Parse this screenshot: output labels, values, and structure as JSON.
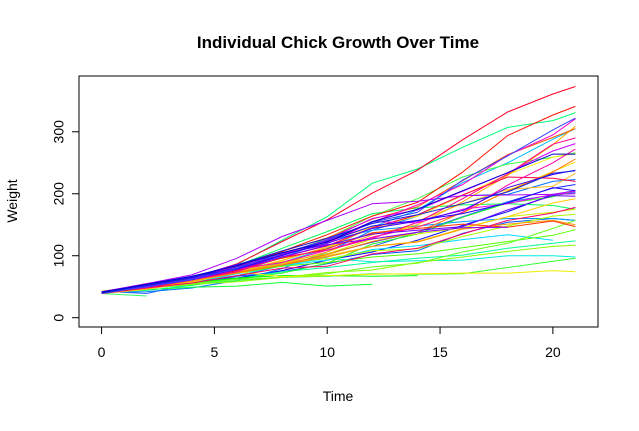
{
  "chart_data": {
    "type": "line",
    "title": "Individual Chick Growth Over Time",
    "xlabel": "Time",
    "ylabel": "Weight",
    "xlim": [
      -1,
      22
    ],
    "ylim": [
      -15,
      390
    ],
    "x_ticks": [
      0,
      5,
      10,
      15,
      20
    ],
    "y_ticks": [
      0,
      100,
      200,
      300
    ],
    "grid": false,
    "legend": "none",
    "x": [
      0,
      2,
      4,
      6,
      8,
      10,
      12,
      14,
      16,
      18,
      20,
      21
    ],
    "series": [
      {
        "color": "#0000FF",
        "values": [
          42,
          51,
          59,
          64,
          76,
          93,
          106,
          125,
          149,
          171,
          199,
          205
        ]
      },
      {
        "color": "#1530FF",
        "values": [
          40,
          49,
          58,
          72,
          84,
          103,
          122,
          138,
          162,
          187,
          209,
          215
        ]
      },
      {
        "color": "#2A60FF",
        "values": [
          43,
          39,
          55,
          67,
          84,
          99,
          115,
          138,
          163,
          187,
          198,
          202
        ]
      },
      {
        "color": "#0055FF",
        "values": [
          42,
          49,
          56,
          67,
          74,
          87,
          102,
          108,
          136,
          154,
          160,
          157
        ]
      },
      {
        "color": "#0077FF",
        "values": [
          41,
          42,
          48,
          60,
          79,
          106,
          141,
          164,
          197,
          199,
          220,
          223
        ]
      },
      {
        "color": "#0099FF",
        "values": [
          41,
          49,
          59,
          74,
          97,
          124,
          141,
          148,
          155,
          160,
          160,
          157
        ]
      },
      {
        "color": "#00BBFF",
        "values": [
          41,
          49,
          57,
          71,
          89,
          112,
          146,
          174,
          218,
          250,
          288,
          305
        ]
      },
      {
        "color": "#00DDFF",
        "values": [
          42,
          50,
          61,
          71,
          84,
          93,
          110,
          116,
          126,
          134,
          125,
          null
        ]
      },
      {
        "color": "#00EEDD",
        "values": [
          42,
          51,
          59,
          68,
          85,
          96,
          90,
          92,
          93,
          100,
          100,
          98
        ]
      },
      {
        "color": "#00FF99",
        "values": [
          41,
          44,
          52,
          63,
          74,
          81,
          89,
          96,
          101,
          112,
          120,
          124
        ]
      },
      {
        "color": "#00FF55",
        "values": [
          43,
          51,
          63,
          84,
          112,
          139,
          168,
          177,
          182,
          184,
          181,
          175
        ]
      },
      {
        "color": "#22FF22",
        "values": [
          41,
          49,
          56,
          62,
          72,
          88,
          119,
          135,
          162,
          185,
          195,
          205
        ]
      },
      {
        "color": "#33FF33",
        "values": [
          41,
          48,
          53,
          60,
          65,
          67,
          71,
          70,
          71,
          81,
          91,
          96
        ]
      },
      {
        "color": "#44FF44",
        "values": [
          41,
          49,
          62,
          79,
          101,
          128,
          164,
          192,
          227,
          248,
          259,
          266
        ]
      },
      {
        "color": "#00FF00",
        "values": [
          41,
          49,
          56,
          64,
          68,
          68,
          67,
          68,
          null,
          null,
          null,
          null
        ]
      },
      {
        "color": "#11FF33",
        "values": [
          41,
          45,
          49,
          51,
          57,
          51,
          54,
          null,
          null,
          null,
          null,
          null
        ]
      },
      {
        "color": "#55FF00",
        "values": [
          42,
          51,
          61,
          72,
          83,
          89,
          98,
          103,
          113,
          123,
          133,
          142
        ]
      },
      {
        "color": "#33FF66",
        "values": [
          39,
          35,
          null,
          null,
          null,
          null,
          null,
          null,
          null,
          null,
          null,
          null
        ]
      },
      {
        "color": "#66FF22",
        "values": [
          43,
          48,
          55,
          62,
          65,
          71,
          82,
          88,
          106,
          120,
          144,
          157
        ]
      },
      {
        "color": "#88FF00",
        "values": [
          41,
          47,
          54,
          58,
          65,
          73,
          77,
          89,
          98,
          107,
          115,
          117
        ]
      },
      {
        "color": "#00FF77",
        "values": [
          40,
          50,
          62,
          86,
          125,
          163,
          217,
          240,
          275,
          307,
          318,
          331
        ]
      },
      {
        "color": "#AAFF00",
        "values": [
          41,
          55,
          64,
          77,
          90,
          95,
          108,
          111,
          131,
          148,
          164,
          167
        ]
      },
      {
        "color": "#CCEE00",
        "values": [
          43,
          52,
          61,
          73,
          90,
          103,
          127,
          135,
          145,
          163,
          170,
          175
        ]
      },
      {
        "color": "#EEEE00",
        "values": [
          42,
          52,
          58,
          74,
          66,
          68,
          70,
          71,
          72,
          72,
          76,
          74
        ]
      },
      {
        "color": "#FFEE11",
        "values": [
          40,
          49,
          62,
          78,
          102,
          124,
          146,
          164,
          197,
          231,
          259,
          265
        ]
      },
      {
        "color": "#FFDD00",
        "values": [
          42,
          48,
          57,
          74,
          93,
          114,
          136,
          147,
          169,
          205,
          236,
          251
        ]
      },
      {
        "color": "#FFCC00",
        "values": [
          39,
          46,
          58,
          73,
          87,
          100,
          115,
          123,
          144,
          163,
          185,
          192
        ]
      },
      {
        "color": "#FFBB22",
        "values": [
          39,
          46,
          58,
          73,
          92,
          114,
          145,
          156,
          184,
          207,
          212,
          233
        ]
      },
      {
        "color": "#FFAA00",
        "values": [
          39,
          48,
          59,
          74,
          87,
          106,
          134,
          150,
          187,
          230,
          279,
          309
        ]
      },
      {
        "color": "#FF9900",
        "values": [
          42,
          48,
          59,
          72,
          85,
          98,
          115,
          122,
          143,
          151,
          157,
          150
        ]
      },
      {
        "color": "#FF7700",
        "values": [
          42,
          53,
          62,
          73,
          85,
          102,
          123,
          138,
          170,
          204,
          235,
          256
        ]
      },
      {
        "color": "#FF5500",
        "values": [
          41,
          49,
          65,
          82,
          107,
          129,
          159,
          179,
          221,
          263,
          291,
          305
        ]
      },
      {
        "color": "#FF3300",
        "values": [
          39,
          50,
          63,
          77,
          96,
          111,
          137,
          144,
          151,
          146,
          156,
          147
        ]
      },
      {
        "color": "#FF1100",
        "values": [
          41,
          49,
          63,
          85,
          107,
          134,
          164,
          186,
          235,
          294,
          327,
          341
        ]
      },
      {
        "color": "#FF0022",
        "values": [
          41,
          53,
          64,
          87,
          123,
          158,
          201,
          238,
          287,
          332,
          361,
          373
        ]
      },
      {
        "color": "#FF0044",
        "values": [
          39,
          48,
          61,
          76,
          98,
          116,
          145,
          166,
          198,
          227,
          225,
          220
        ]
      },
      {
        "color": "#FF0066",
        "values": [
          41,
          48,
          56,
          68,
          80,
          83,
          103,
          112,
          135,
          157,
          169,
          178
        ]
      },
      {
        "color": "#FF0088",
        "values": [
          41,
          49,
          61,
          74,
          98,
          109,
          128,
          154,
          192,
          232,
          280,
          290
        ]
      },
      {
        "color": "#FF00AA",
        "values": [
          42,
          50,
          61,
          78,
          89,
          109,
          130,
          146,
          170,
          214,
          250,
          272
        ]
      },
      {
        "color": "#FF00CC",
        "values": [
          41,
          55,
          66,
          79,
          101,
          120,
          154,
          182,
          215,
          262,
          295,
          321
        ]
      },
      {
        "color": "#EE00EE",
        "values": [
          42,
          51,
          66,
          85,
          103,
          124,
          155,
          153,
          175,
          184,
          199,
          204
        ]
      },
      {
        "color": "#CC00FF",
        "values": [
          42,
          49,
          63,
          84,
          103,
          126,
          160,
          174,
          204,
          234,
          269,
          281
        ]
      },
      {
        "color": "#AA00FF",
        "values": [
          42,
          55,
          69,
          96,
          131,
          157,
          184,
          188,
          197,
          198,
          199,
          200
        ]
      },
      {
        "color": "#8800FF",
        "values": [
          42,
          51,
          65,
          86,
          103,
          118,
          127,
          138,
          145,
          146,
          null,
          null
        ]
      },
      {
        "color": "#6600FF",
        "values": [
          41,
          50,
          61,
          78,
          98,
          117,
          135,
          141,
          147,
          174,
          197,
          196
        ]
      },
      {
        "color": "#4400FF",
        "values": [
          40,
          52,
          62,
          82,
          101,
          120,
          144,
          156,
          173,
          210,
          231,
          238
        ]
      },
      {
        "color": "#2200FF",
        "values": [
          41,
          53,
          66,
          79,
          100,
          123,
          148,
          157,
          168,
          185,
          210,
          205
        ]
      },
      {
        "color": "#3344FF",
        "values": [
          39,
          50,
          62,
          80,
          104,
          125,
          154,
          170,
          222,
          261,
          303,
          322
        ]
      },
      {
        "color": "#1122DD",
        "values": [
          40,
          53,
          64,
          85,
          108,
          128,
          152,
          166,
          184,
          203,
          233,
          237
        ]
      },
      {
        "color": "#0000CC",
        "values": [
          41,
          54,
          67,
          84,
          105,
          122,
          155,
          175,
          205,
          234,
          264,
          264
        ]
      }
    ]
  }
}
